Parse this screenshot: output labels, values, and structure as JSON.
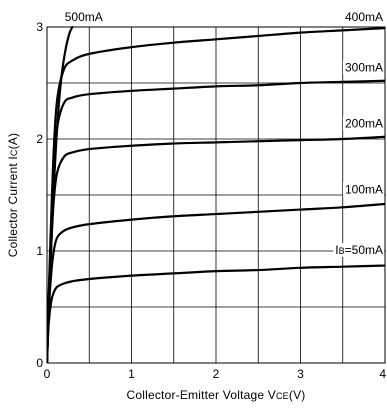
{
  "chart_data": {
    "type": "line",
    "title": "",
    "xlabel": "Collector-Emitter Voltage VCE(V)",
    "xlabel_parts": {
      "prefix": "Collector-Emitter Voltage V",
      "sub": "CE",
      "suffix": "(V)"
    },
    "ylabel": "Collector Current IC(A)",
    "ylabel_parts": {
      "prefix": "Collector Current I",
      "sub": "C",
      "suffix": "(A)"
    },
    "xlim": [
      0,
      4
    ],
    "ylim": [
      0,
      3
    ],
    "x_ticks": [
      0,
      4
    ],
    "x_tick_labels": [
      "0",
      "1",
      "2",
      "3",
      "4"
    ],
    "x_tick_values": [
      0,
      1,
      2,
      3,
      4
    ],
    "y_tick_values": [
      0,
      1,
      2,
      3
    ],
    "y_tick_labels": [
      "0",
      "1",
      "2",
      "3"
    ],
    "x_grid_step": 0.5,
    "y_grid_step": 0.5,
    "grid": true,
    "series": [
      {
        "name": "IB=50mA",
        "label_parts": {
          "prefix": "I",
          "sub": "B",
          "suffix": "=50mA"
        },
        "x": [
          0,
          0.02,
          0.05,
          0.08,
          0.12,
          0.2,
          0.3,
          0.5,
          1,
          1.5,
          2,
          2.5,
          3,
          3.5,
          4
        ],
        "y": [
          0,
          0.35,
          0.55,
          0.63,
          0.68,
          0.71,
          0.73,
          0.75,
          0.78,
          0.8,
          0.82,
          0.83,
          0.85,
          0.86,
          0.87
        ]
      },
      {
        "name": "100mA",
        "x": [
          0,
          0.02,
          0.05,
          0.08,
          0.12,
          0.2,
          0.3,
          0.5,
          1,
          1.5,
          2,
          2.5,
          3,
          3.5,
          4
        ],
        "y": [
          0,
          0.45,
          0.8,
          1.0,
          1.12,
          1.18,
          1.21,
          1.24,
          1.28,
          1.31,
          1.33,
          1.35,
          1.37,
          1.39,
          1.42
        ]
      },
      {
        "name": "200mA",
        "x": [
          0,
          0.02,
          0.05,
          0.08,
          0.12,
          0.2,
          0.3,
          0.5,
          1,
          1.5,
          2,
          2.5,
          3,
          3.5,
          4
        ],
        "y": [
          0,
          0.5,
          1.05,
          1.45,
          1.7,
          1.84,
          1.88,
          1.91,
          1.94,
          1.96,
          1.97,
          1.98,
          1.99,
          2.0,
          2.02
        ]
      },
      {
        "name": "300mA",
        "x": [
          0,
          0.02,
          0.05,
          0.08,
          0.12,
          0.2,
          0.3,
          0.5,
          1,
          1.5,
          2,
          2.5,
          3,
          3.5,
          4
        ],
        "y": [
          0,
          0.55,
          1.2,
          1.7,
          2.1,
          2.32,
          2.37,
          2.4,
          2.43,
          2.45,
          2.47,
          2.48,
          2.5,
          2.51,
          2.52
        ]
      },
      {
        "name": "400mA",
        "x": [
          0,
          0.02,
          0.05,
          0.08,
          0.12,
          0.2,
          0.3,
          0.5,
          1,
          1.5,
          2,
          2.5,
          3,
          3.5,
          4
        ],
        "y": [
          0,
          0.6,
          1.3,
          1.9,
          2.35,
          2.62,
          2.7,
          2.76,
          2.82,
          2.86,
          2.89,
          2.92,
          2.95,
          2.97,
          2.99
        ]
      },
      {
        "name": "500mA",
        "x": [
          0,
          0.03,
          0.07,
          0.12,
          0.17,
          0.22,
          0.26,
          0.28,
          0.3
        ],
        "y": [
          0,
          0.65,
          1.4,
          2.1,
          2.55,
          2.8,
          2.93,
          2.97,
          3.0
        ]
      }
    ]
  }
}
